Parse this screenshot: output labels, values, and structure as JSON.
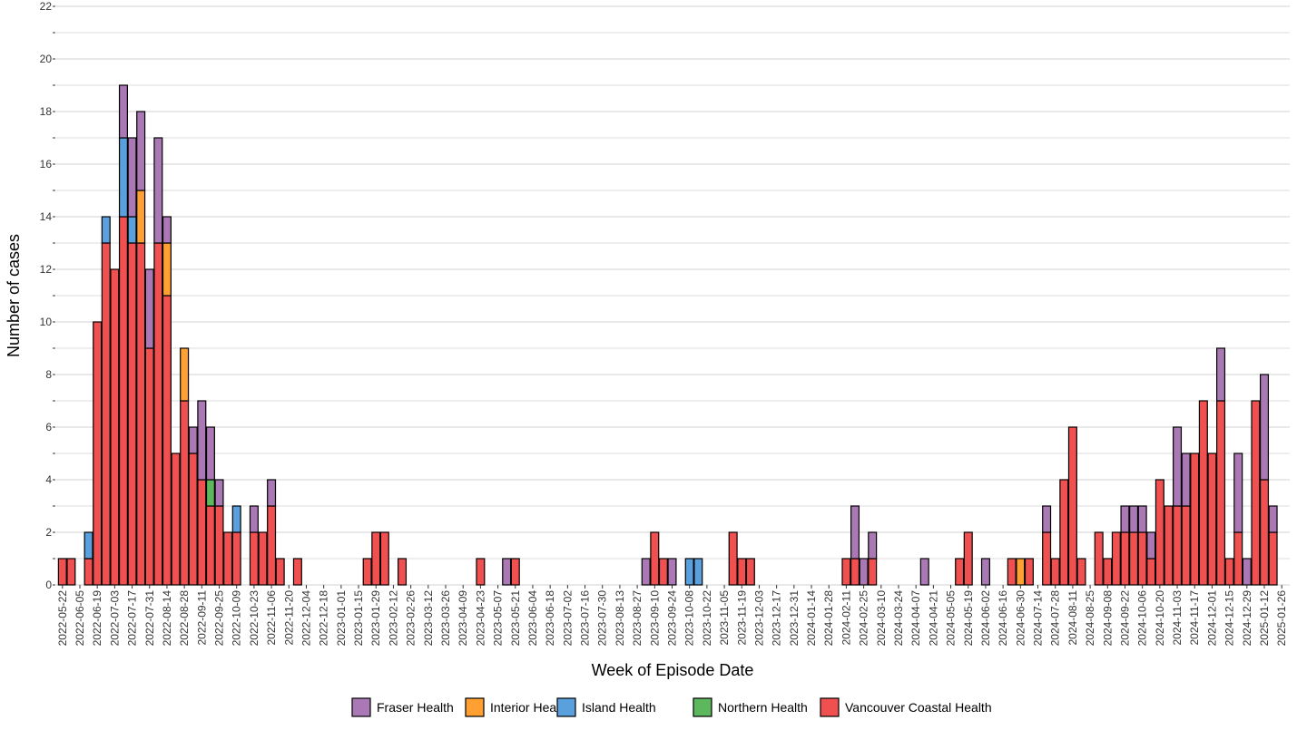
{
  "chart_data": {
    "type": "bar",
    "stacked": true,
    "title": "",
    "xlabel": "Week of Episode Date",
    "ylabel": "Number of cases",
    "ylim": [
      0,
      22
    ],
    "y_ticks": [
      0,
      2,
      4,
      6,
      8,
      10,
      12,
      14,
      16,
      18,
      20,
      22
    ],
    "grid": true,
    "legend_position": "bottom",
    "start_week": "2022-05-22",
    "x_tick_labels": [
      "2022-05-22",
      "2022-06-05",
      "2022-06-19",
      "2022-07-03",
      "2022-07-17",
      "2022-07-31",
      "2022-08-14",
      "2022-08-28",
      "2022-09-11",
      "2022-09-25",
      "2022-10-09",
      "2022-10-23",
      "2022-11-06",
      "2022-11-20",
      "2022-12-04",
      "2022-12-18",
      "2023-01-01",
      "2023-01-15",
      "2023-01-29",
      "2023-02-12",
      "2023-02-26",
      "2023-03-12",
      "2023-03-26",
      "2023-04-09",
      "2023-04-23",
      "2023-05-07",
      "2023-05-21",
      "2023-06-04",
      "2023-06-18",
      "2023-07-02",
      "2023-07-16",
      "2023-07-30",
      "2023-08-13",
      "2023-08-27",
      "2023-09-10",
      "2023-09-24",
      "2023-10-08",
      "2023-10-22",
      "2023-11-05",
      "2023-11-19",
      "2023-12-03",
      "2023-12-17",
      "2023-12-31",
      "2024-01-14",
      "2024-01-28",
      "2024-02-11",
      "2024-02-25",
      "2024-03-10",
      "2024-03-24",
      "2024-04-07",
      "2024-04-21",
      "2024-05-05",
      "2024-05-19",
      "2024-06-02",
      "2024-06-16",
      "2024-06-30",
      "2024-07-14",
      "2024-07-28",
      "2024-08-11",
      "2024-08-25",
      "2024-09-08",
      "2024-09-22",
      "2024-10-06",
      "2024-10-20",
      "2024-11-03",
      "2024-11-17",
      "2024-12-01",
      "2024-12-15",
      "2024-12-29",
      "2025-01-12",
      "2025-01-26"
    ],
    "series": [
      {
        "name": "Vancouver Coastal Health",
        "color": "#F05050",
        "points": [
          [
            "2022-05-22",
            1
          ],
          [
            "2022-05-29",
            1
          ],
          [
            "2022-06-12",
            1
          ],
          [
            "2022-06-19",
            10
          ],
          [
            "2022-06-26",
            13
          ],
          [
            "2022-07-03",
            12
          ],
          [
            "2022-07-10",
            14
          ],
          [
            "2022-07-17",
            13
          ],
          [
            "2022-07-24",
            13
          ],
          [
            "2022-07-31",
            9
          ],
          [
            "2022-08-07",
            13
          ],
          [
            "2022-08-14",
            11
          ],
          [
            "2022-08-21",
            5
          ],
          [
            "2022-08-28",
            7
          ],
          [
            "2022-09-04",
            5
          ],
          [
            "2022-09-11",
            4
          ],
          [
            "2022-09-18",
            3
          ],
          [
            "2022-09-25",
            3
          ],
          [
            "2022-10-02",
            2
          ],
          [
            "2022-10-09",
            2
          ],
          [
            "2022-10-23",
            2
          ],
          [
            "2022-10-30",
            2
          ],
          [
            "2022-11-06",
            3
          ],
          [
            "2022-11-13",
            1
          ],
          [
            "2022-11-27",
            1
          ],
          [
            "2023-01-22",
            1
          ],
          [
            "2023-01-29",
            2
          ],
          [
            "2023-02-05",
            2
          ],
          [
            "2023-02-19",
            1
          ],
          [
            "2023-04-23",
            1
          ],
          [
            "2023-05-21",
            1
          ],
          [
            "2023-09-10",
            2
          ],
          [
            "2023-09-17",
            1
          ],
          [
            "2023-11-12",
            2
          ],
          [
            "2023-11-19",
            1
          ],
          [
            "2023-11-26",
            1
          ],
          [
            "2024-02-11",
            1
          ],
          [
            "2024-02-18",
            1
          ],
          [
            "2024-03-03",
            1
          ],
          [
            "2024-05-12",
            1
          ],
          [
            "2024-05-19",
            2
          ],
          [
            "2024-06-23",
            1
          ],
          [
            "2024-07-07",
            1
          ],
          [
            "2024-07-21",
            2
          ],
          [
            "2024-07-28",
            1
          ],
          [
            "2024-08-04",
            4
          ],
          [
            "2024-08-11",
            6
          ],
          [
            "2024-08-18",
            1
          ],
          [
            "2024-09-01",
            2
          ],
          [
            "2024-09-08",
            1
          ],
          [
            "2024-09-15",
            2
          ],
          [
            "2024-09-22",
            2
          ],
          [
            "2024-09-29",
            2
          ],
          [
            "2024-10-06",
            2
          ],
          [
            "2024-10-13",
            1
          ],
          [
            "2024-10-20",
            4
          ],
          [
            "2024-10-27",
            3
          ],
          [
            "2024-11-03",
            3
          ],
          [
            "2024-11-10",
            3
          ],
          [
            "2024-11-17",
            5
          ],
          [
            "2024-11-24",
            7
          ],
          [
            "2024-12-01",
            5
          ],
          [
            "2024-12-08",
            7
          ],
          [
            "2024-12-15",
            1
          ],
          [
            "2024-12-22",
            2
          ],
          [
            "2025-01-05",
            7
          ],
          [
            "2025-01-12",
            4
          ],
          [
            "2025-01-19",
            2
          ]
        ]
      },
      {
        "name": "Northern Health",
        "color": "#5DB85D",
        "points": [
          [
            "2022-09-18",
            1
          ]
        ]
      },
      {
        "name": "Island Health",
        "color": "#5AA0DC",
        "points": [
          [
            "2022-06-12",
            1
          ],
          [
            "2022-06-26",
            1
          ],
          [
            "2022-07-10",
            3
          ],
          [
            "2022-07-17",
            1
          ],
          [
            "2022-10-09",
            1
          ],
          [
            "2023-10-08",
            1
          ],
          [
            "2023-10-15",
            1
          ]
        ]
      },
      {
        "name": "Interior Health",
        "color": "#FFA033",
        "points": [
          [
            "2022-07-24",
            2
          ],
          [
            "2022-08-14",
            2
          ],
          [
            "2022-08-28",
            2
          ],
          [
            "2024-06-30",
            1
          ]
        ]
      },
      {
        "name": "Fraser Health",
        "color": "#AA78B4",
        "points": [
          [
            "2022-07-10",
            2
          ],
          [
            "2022-07-17",
            3
          ],
          [
            "2022-07-24",
            3
          ],
          [
            "2022-07-31",
            3
          ],
          [
            "2022-08-07",
            4
          ],
          [
            "2022-08-14",
            1
          ],
          [
            "2022-09-04",
            1
          ],
          [
            "2022-09-11",
            3
          ],
          [
            "2022-09-18",
            2
          ],
          [
            "2022-09-25",
            1
          ],
          [
            "2022-10-23",
            1
          ],
          [
            "2022-11-06",
            1
          ],
          [
            "2023-05-14",
            1
          ],
          [
            "2023-09-03",
            1
          ],
          [
            "2023-09-24",
            1
          ],
          [
            "2024-02-18",
            2
          ],
          [
            "2024-02-25",
            1
          ],
          [
            "2024-03-03",
            1
          ],
          [
            "2024-04-14",
            1
          ],
          [
            "2024-06-02",
            1
          ],
          [
            "2024-07-21",
            1
          ],
          [
            "2024-09-22",
            1
          ],
          [
            "2024-09-29",
            1
          ],
          [
            "2024-10-06",
            1
          ],
          [
            "2024-10-13",
            1
          ],
          [
            "2024-11-03",
            3
          ],
          [
            "2024-11-10",
            2
          ],
          [
            "2024-12-08",
            2
          ],
          [
            "2024-12-22",
            3
          ],
          [
            "2024-12-29",
            1
          ],
          [
            "2025-01-12",
            4
          ],
          [
            "2025-01-19",
            1
          ]
        ]
      }
    ],
    "legend": [
      "Fraser Health",
      "Interior Health",
      "Island Health",
      "Northern Health",
      "Vancouver Coastal Health"
    ]
  }
}
